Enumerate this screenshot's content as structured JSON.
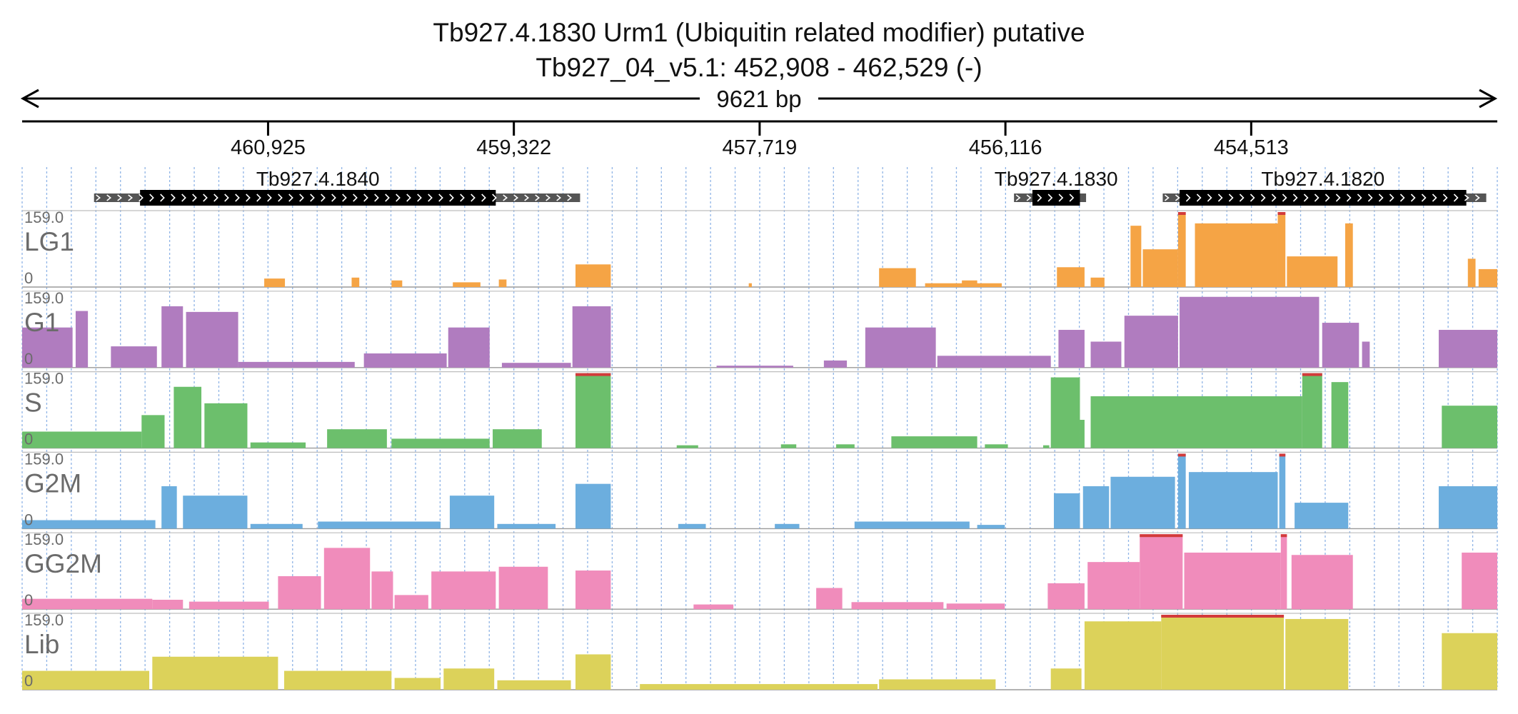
{
  "header": {
    "title": "Tb927.4.1830  Urm1 (Ubiquitin related modifier)  putative",
    "subtitle": "Tb927_04_v5.1: 452,908 - 462,529 (-)",
    "span_label": "9621 bp"
  },
  "chart_data": {
    "type": "area",
    "x_range": [
      462529,
      452908
    ],
    "x_reversed": true,
    "ticks": [
      {
        "value": 460925,
        "label": "460,925"
      },
      {
        "value": 459322,
        "label": "459,322"
      },
      {
        "value": 457719,
        "label": "457,719"
      },
      {
        "value": 456116,
        "label": "456,116"
      },
      {
        "value": 454513,
        "label": "454,513"
      }
    ],
    "gene_model_labels": [
      "Tb927.4.1840",
      "Tb927.4.1830",
      "Tb927.4.1820"
    ],
    "genes": [
      {
        "name": "Tb927.4.1840",
        "utr_start": 462060,
        "cds_start": 461760,
        "cds_end": 459440,
        "utr_end": 458890
      },
      {
        "name": "Tb927.4.1830",
        "utr_start": 456060,
        "cds_start": 455940,
        "cds_end": 455630,
        "utr_end": 455590
      },
      {
        "name": "Tb927.4.1820",
        "utr_start": 455090,
        "cds_start": 454980,
        "cds_end": 453110,
        "utr_end": 452980
      }
    ],
    "ylim": [
      0,
      159.0
    ],
    "ytop_label": "159.0",
    "ybottom_label": "0",
    "colors": {
      "LG1": "#f5a445",
      "G1": "#b07cbf",
      "S": "#6cbf6c",
      "G2M": "#6caede",
      "GG2M": "#f08cbb",
      "Lib": "#dcd25a",
      "clip": "#d23b3b"
    },
    "series": [
      {
        "name": "LG1",
        "segments": [
          {
            "from": 460950,
            "to": 460815,
            "level": 18
          },
          {
            "from": 460380,
            "to": 460330,
            "level": 20
          },
          {
            "from": 460120,
            "to": 460050,
            "level": 14
          },
          {
            "from": 459720,
            "to": 459540,
            "level": 10
          },
          {
            "from": 459420,
            "to": 459370,
            "level": 16
          },
          {
            "from": 458920,
            "to": 458690,
            "level": 48
          },
          {
            "from": 457790,
            "to": 457770,
            "level": 8
          },
          {
            "from": 456940,
            "to": 456700,
            "level": 40
          },
          {
            "from": 456640,
            "to": 456140,
            "level": 8
          },
          {
            "from": 456400,
            "to": 456300,
            "level": 14
          },
          {
            "from": 455780,
            "to": 455600,
            "level": 42
          },
          {
            "from": 455560,
            "to": 455470,
            "level": 20
          },
          {
            "from": 455300,
            "to": 455230,
            "level": 130
          },
          {
            "from": 455220,
            "to": 454990,
            "level": 80
          },
          {
            "from": 454990,
            "to": 454940,
            "level": 159
          },
          {
            "from": 454880,
            "to": 454340,
            "level": 135
          },
          {
            "from": 454340,
            "to": 454290,
            "level": 159
          },
          {
            "from": 454280,
            "to": 453950,
            "level": 65
          },
          {
            "from": 453900,
            "to": 453850,
            "level": 135
          },
          {
            "from": 453100,
            "to": 453050,
            "level": 60
          },
          {
            "from": 453030,
            "to": 452908,
            "level": 38
          }
        ]
      },
      {
        "name": "G1",
        "segments": [
          {
            "from": 462529,
            "to": 462200,
            "level": 85
          },
          {
            "from": 462180,
            "to": 462100,
            "level": 120
          },
          {
            "from": 461950,
            "to": 461650,
            "level": 45
          },
          {
            "from": 461620,
            "to": 461480,
            "level": 130
          },
          {
            "from": 461460,
            "to": 461120,
            "level": 118
          },
          {
            "from": 461120,
            "to": 460360,
            "level": 12
          },
          {
            "from": 460300,
            "to": 459760,
            "level": 30
          },
          {
            "from": 459750,
            "to": 459480,
            "level": 85
          },
          {
            "from": 459400,
            "to": 458950,
            "level": 10
          },
          {
            "from": 458940,
            "to": 458690,
            "level": 130
          },
          {
            "from": 458000,
            "to": 457500,
            "level": 4
          },
          {
            "from": 457300,
            "to": 457150,
            "level": 15
          },
          {
            "from": 457030,
            "to": 456570,
            "level": 85
          },
          {
            "from": 456560,
            "to": 455820,
            "level": 25
          },
          {
            "from": 455770,
            "to": 455600,
            "level": 80
          },
          {
            "from": 455560,
            "to": 455360,
            "level": 55
          },
          {
            "from": 455340,
            "to": 454990,
            "level": 110
          },
          {
            "from": 454980,
            "to": 454070,
            "level": 150
          },
          {
            "from": 454050,
            "to": 453810,
            "level": 95
          },
          {
            "from": 453790,
            "to": 453740,
            "level": 55
          },
          {
            "from": 453290,
            "to": 452908,
            "level": 80
          }
        ]
      },
      {
        "name": "S",
        "segments": [
          {
            "from": 462529,
            "to": 461750,
            "level": 35
          },
          {
            "from": 461750,
            "to": 461600,
            "level": 70
          },
          {
            "from": 461540,
            "to": 461360,
            "level": 130
          },
          {
            "from": 461340,
            "to": 461060,
            "level": 95
          },
          {
            "from": 461040,
            "to": 460680,
            "level": 12
          },
          {
            "from": 460540,
            "to": 460150,
            "level": 40
          },
          {
            "from": 460120,
            "to": 459480,
            "level": 20
          },
          {
            "from": 459460,
            "to": 459140,
            "level": 40
          },
          {
            "from": 458920,
            "to": 458690,
            "level": 159
          },
          {
            "from": 458260,
            "to": 458120,
            "level": 6
          },
          {
            "from": 457580,
            "to": 457480,
            "level": 8
          },
          {
            "from": 457220,
            "to": 457100,
            "level": 8
          },
          {
            "from": 456860,
            "to": 456300,
            "level": 25
          },
          {
            "from": 456250,
            "to": 456100,
            "level": 8
          },
          {
            "from": 455870,
            "to": 455830,
            "level": 6
          },
          {
            "from": 455820,
            "to": 455630,
            "level": 150
          },
          {
            "from": 455630,
            "to": 455600,
            "level": 60
          },
          {
            "from": 455560,
            "to": 454180,
            "level": 110
          },
          {
            "from": 454180,
            "to": 454050,
            "level": 159
          },
          {
            "from": 453990,
            "to": 453880,
            "level": 140
          },
          {
            "from": 453270,
            "to": 452908,
            "level": 90
          }
        ]
      },
      {
        "name": "G2M",
        "segments": [
          {
            "from": 462529,
            "to": 461660,
            "level": 18
          },
          {
            "from": 461620,
            "to": 461520,
            "level": 90
          },
          {
            "from": 461480,
            "to": 461060,
            "level": 70
          },
          {
            "from": 461040,
            "to": 460700,
            "level": 10
          },
          {
            "from": 460600,
            "to": 459800,
            "level": 15
          },
          {
            "from": 459740,
            "to": 459450,
            "level": 70
          },
          {
            "from": 459430,
            "to": 459050,
            "level": 10
          },
          {
            "from": 458920,
            "to": 458690,
            "level": 95
          },
          {
            "from": 458250,
            "to": 458070,
            "level": 10
          },
          {
            "from": 457620,
            "to": 457460,
            "level": 10
          },
          {
            "from": 457100,
            "to": 456350,
            "level": 15
          },
          {
            "from": 456300,
            "to": 456120,
            "level": 8
          },
          {
            "from": 455800,
            "to": 455630,
            "level": 75
          },
          {
            "from": 455610,
            "to": 455440,
            "level": 90
          },
          {
            "from": 455430,
            "to": 455010,
            "level": 110
          },
          {
            "from": 454990,
            "to": 454940,
            "level": 159
          },
          {
            "from": 454920,
            "to": 454340,
            "level": 120
          },
          {
            "from": 454330,
            "to": 454290,
            "level": 159
          },
          {
            "from": 454230,
            "to": 453880,
            "level": 55
          },
          {
            "from": 453290,
            "to": 452908,
            "level": 90
          }
        ]
      },
      {
        "name": "GG2M",
        "segments": [
          {
            "from": 462529,
            "to": 461680,
            "level": 22
          },
          {
            "from": 461680,
            "to": 461480,
            "level": 20
          },
          {
            "from": 461440,
            "to": 460920,
            "level": 16
          },
          {
            "from": 460860,
            "to": 460580,
            "level": 70
          },
          {
            "from": 460560,
            "to": 460260,
            "level": 130
          },
          {
            "from": 460250,
            "to": 460110,
            "level": 80
          },
          {
            "from": 460100,
            "to": 459880,
            "level": 30
          },
          {
            "from": 459860,
            "to": 459440,
            "level": 80
          },
          {
            "from": 459420,
            "to": 459100,
            "level": 90
          },
          {
            "from": 458920,
            "to": 458690,
            "level": 82
          },
          {
            "from": 458150,
            "to": 457890,
            "level": 10
          },
          {
            "from": 457350,
            "to": 457180,
            "level": 45
          },
          {
            "from": 457120,
            "to": 456520,
            "level": 15
          },
          {
            "from": 456500,
            "to": 456120,
            "level": 12
          },
          {
            "from": 455840,
            "to": 455600,
            "level": 55
          },
          {
            "from": 455580,
            "to": 455240,
            "level": 100
          },
          {
            "from": 455240,
            "to": 454960,
            "level": 159
          },
          {
            "from": 454950,
            "to": 454320,
            "level": 120
          },
          {
            "from": 454320,
            "to": 454280,
            "level": 159
          },
          {
            "from": 454250,
            "to": 453850,
            "level": 115
          },
          {
            "from": 453140,
            "to": 452908,
            "level": 120
          }
        ]
      },
      {
        "name": "Lib",
        "segments": [
          {
            "from": 462529,
            "to": 461700,
            "level": 40
          },
          {
            "from": 461680,
            "to": 460860,
            "level": 70
          },
          {
            "from": 460820,
            "to": 460120,
            "level": 40
          },
          {
            "from": 460100,
            "to": 459800,
            "level": 25
          },
          {
            "from": 459780,
            "to": 459450,
            "level": 45
          },
          {
            "from": 459430,
            "to": 458950,
            "level": 20
          },
          {
            "from": 458920,
            "to": 458690,
            "level": 75
          },
          {
            "from": 458500,
            "to": 456950,
            "level": 12
          },
          {
            "from": 456940,
            "to": 456180,
            "level": 22
          },
          {
            "from": 455820,
            "to": 455620,
            "level": 45
          },
          {
            "from": 455600,
            "to": 455100,
            "level": 145
          },
          {
            "from": 455100,
            "to": 454300,
            "level": 159
          },
          {
            "from": 454290,
            "to": 453880,
            "level": 150
          },
          {
            "from": 453270,
            "to": 452908,
            "level": 120
          }
        ]
      }
    ]
  }
}
